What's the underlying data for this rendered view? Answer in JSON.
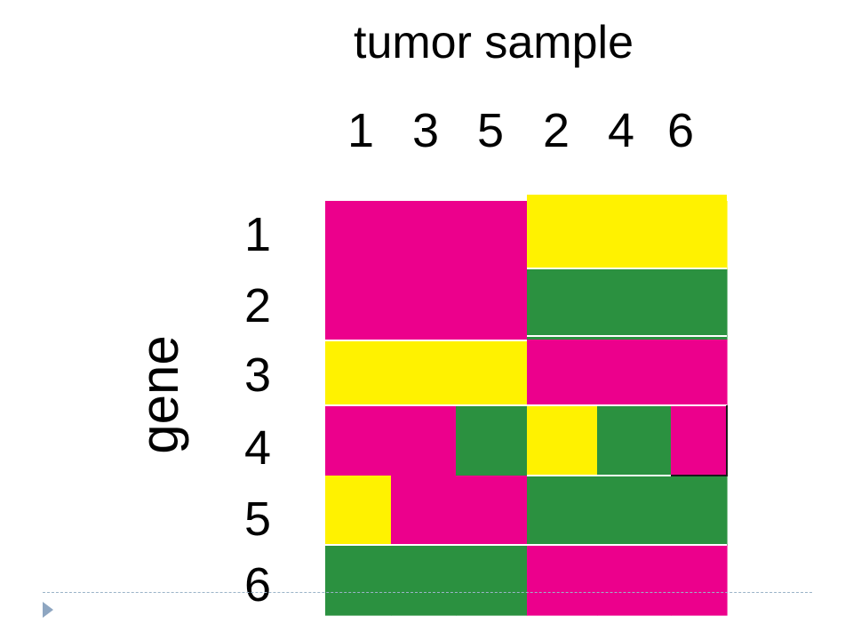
{
  "chart_data": {
    "type": "heatmap",
    "title": "tumor sample",
    "ylabel": "gene",
    "columns": [
      "1",
      "3",
      "5",
      "2",
      "4",
      "6"
    ],
    "rows": [
      "1",
      "2",
      "3",
      "4",
      "5",
      "6"
    ],
    "legend": [],
    "colors": {
      "M": "#EC008C",
      "Y": "#FFF200",
      "G": "#2B9140"
    },
    "values": [
      [
        "M",
        "M",
        "M",
        "Y",
        "Y",
        "Y"
      ],
      [
        "M",
        "M",
        "M",
        "G",
        "G",
        "G"
      ],
      [
        "Y",
        "Y",
        "Y",
        "M",
        "M",
        "M"
      ],
      [
        "M",
        "M",
        "G",
        "Y",
        "G",
        "M"
      ],
      [
        "Y",
        "M",
        "M",
        "G",
        "G",
        "G"
      ],
      [
        "G",
        "G",
        "G",
        "M",
        "M",
        "M"
      ]
    ]
  }
}
